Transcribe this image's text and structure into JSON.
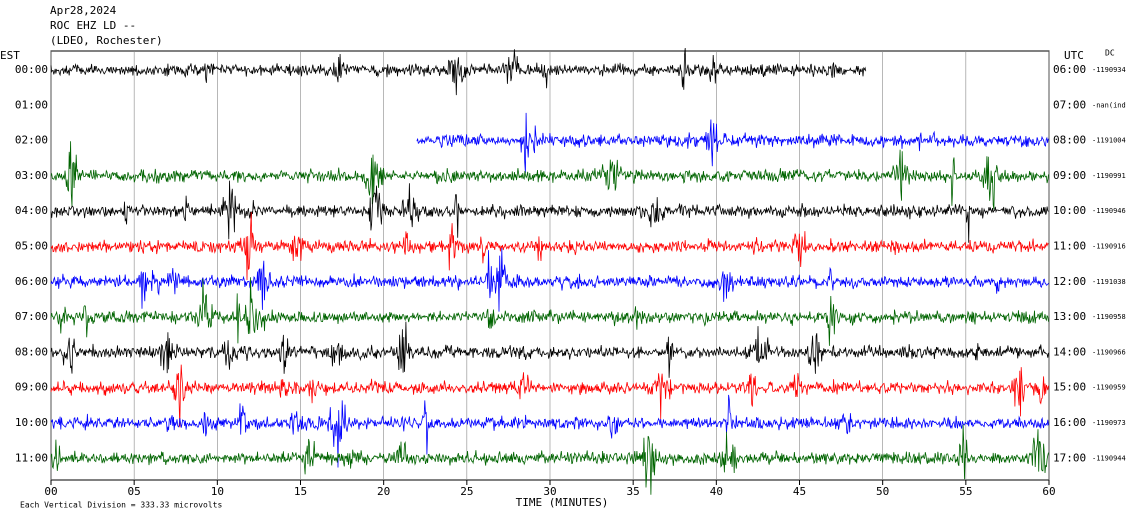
{
  "chart_data": {
    "type": "helicorder",
    "title_lines": [
      "Apr28,2024",
      "ROC EHZ LD --",
      "(LDEO, Rochester)"
    ],
    "left_axis_label": "EST",
    "right_axis_label": "UTC",
    "right_note": "DC",
    "xlabel": "TIME (MINUTES)",
    "footnote": "Each Vertical Division = 333.33 microvolts",
    "xlim": [
      0,
      60
    ],
    "xticks": [
      {
        "value": 0,
        "label": "00"
      },
      {
        "value": 5,
        "label": "05"
      },
      10,
      15,
      20,
      25,
      30,
      35,
      40,
      45,
      50,
      55,
      60
    ],
    "grid": true,
    "rows": [
      {
        "est": "00:00",
        "utc": "06:00",
        "offset": "-1190934",
        "color": "#000000",
        "start": 0,
        "end": 49
      },
      {
        "est": "01:00",
        "utc": "07:00",
        "offset": "-nan(ind",
        "color": null,
        "start": null,
        "end": null
      },
      {
        "est": "02:00",
        "utc": "08:00",
        "offset": "-1191004",
        "color": "#0000ff",
        "start": 22,
        "end": 60
      },
      {
        "est": "03:00",
        "utc": "09:00",
        "offset": "-1190991",
        "color": "#006400",
        "start": 0,
        "end": 60
      },
      {
        "est": "04:00",
        "utc": "10:00",
        "offset": "-1190946",
        "color": "#000000",
        "start": 0,
        "end": 60
      },
      {
        "est": "05:00",
        "utc": "11:00",
        "offset": "-1190916",
        "color": "#ff0000",
        "start": 0,
        "end": 60
      },
      {
        "est": "06:00",
        "utc": "12:00",
        "offset": "-1191038",
        "color": "#0000ff",
        "start": 0,
        "end": 60
      },
      {
        "est": "07:00",
        "utc": "13:00",
        "offset": "-1190958",
        "color": "#006400",
        "start": 0,
        "end": 60
      },
      {
        "est": "08:00",
        "utc": "14:00",
        "offset": "-1190966",
        "color": "#000000",
        "start": 0,
        "end": 60
      },
      {
        "est": "09:00",
        "utc": "15:00",
        "offset": "-1190959",
        "color": "#ff0000",
        "start": 0,
        "end": 60
      },
      {
        "est": "10:00",
        "utc": "16:00",
        "offset": "-1190973",
        "color": "#0000ff",
        "start": 0,
        "end": 60
      },
      {
        "est": "11:00",
        "utc": "17:00",
        "offset": "-1190944",
        "color": "#006400",
        "start": 0,
        "end": 60
      }
    ]
  }
}
